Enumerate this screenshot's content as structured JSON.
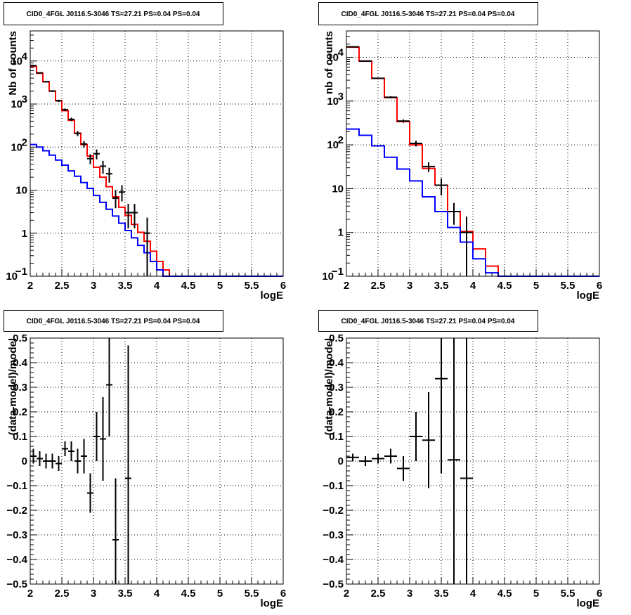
{
  "chart_data": [
    {
      "type": "line",
      "title": "CID0_4FGL J0116.5-3046 TS=27.21 PS=0.04 PS=0.04",
      "xlabel": "logE",
      "ylabel": "Nb of counts",
      "xlim": [
        2,
        6
      ],
      "ylim": [
        0.1,
        50000
      ],
      "yscale": "log",
      "grid": true,
      "x_ticks": [
        "2",
        "2.5",
        "3",
        "3.5",
        "4",
        "4.5",
        "5",
        "5.5",
        "6"
      ],
      "y_ticks": [
        {
          "value": 0.1,
          "label": "10",
          "sup": "−1"
        },
        {
          "value": 1,
          "label": "1",
          "sup": ""
        },
        {
          "value": 10,
          "label": "10",
          "sup": ""
        },
        {
          "value": 100,
          "label": "10",
          "sup": "2"
        },
        {
          "value": 1000,
          "label": "10",
          "sup": "3"
        },
        {
          "value": 10000,
          "label": "10",
          "sup": "4"
        }
      ],
      "bin_edges": [
        2,
        2.1,
        2.2,
        2.3,
        2.4,
        2.5,
        2.6,
        2.7,
        2.8,
        2.9,
        3,
        3.1,
        3.2,
        3.3,
        3.4,
        3.5,
        3.6,
        3.7,
        3.8,
        3.9,
        4,
        4.1,
        4.2,
        4.3,
        4.4,
        4.5,
        4.6,
        4.7,
        4.8,
        4.9,
        5,
        5.1,
        5.2,
        5.3,
        5.4,
        5.5,
        5.6,
        5.7,
        5.8,
        5.9,
        6
      ],
      "series": [
        {
          "name": "",
          "color": "#ff0000",
          "kind": "step",
          "values": [
            7500,
            5200,
            3300,
            2000,
            1200,
            700,
            420,
            210,
            115,
            62,
            34,
            20,
            12,
            7,
            4,
            2.6,
            1.6,
            1.05,
            0.65,
            0.38,
            0.22,
            0.14,
            0.1,
            0.1,
            0.1,
            0.1,
            0.1,
            0.1,
            0.1,
            0.1,
            0.1,
            0.1,
            0.1,
            0.1,
            0.1,
            0.1,
            0.1,
            0.1,
            0.1,
            0.1
          ]
        },
        {
          "name": "",
          "color": "#0000ff",
          "kind": "step",
          "values": [
            115,
            100,
            82,
            65,
            50,
            38,
            28,
            21,
            15,
            11,
            7.5,
            5.2,
            3.6,
            2.5,
            1.7,
            1.15,
            0.78,
            0.52,
            0.35,
            0.22,
            0.14,
            0.1,
            0.1,
            0.1,
            0.1,
            0.1,
            0.1,
            0.1,
            0.1,
            0.1,
            0.1,
            0.1,
            0.1,
            0.1,
            0.1,
            0.1,
            0.1,
            0.1,
            0.1,
            0.1
          ]
        },
        {
          "name": "",
          "color": "#000000",
          "kind": "errorbar",
          "xerr": 0.05,
          "points": [
            {
              "x": 2.05,
              "y": 7800,
              "lo": 7600,
              "hi": 8000
            },
            {
              "x": 2.15,
              "y": 5300,
              "lo": 5150,
              "hi": 5450
            },
            {
              "x": 2.25,
              "y": 3300,
              "lo": 3190,
              "hi": 3410
            },
            {
              "x": 2.35,
              "y": 2000,
              "lo": 1910,
              "hi": 2090
            },
            {
              "x": 2.45,
              "y": 1190,
              "lo": 1120,
              "hi": 1260
            },
            {
              "x": 2.55,
              "y": 740,
              "lo": 690,
              "hi": 790
            },
            {
              "x": 2.65,
              "y": 440,
              "lo": 400,
              "hi": 480
            },
            {
              "x": 2.75,
              "y": 208,
              "lo": 180,
              "hi": 236
            },
            {
              "x": 2.85,
              "y": 118,
              "lo": 97,
              "hi": 139
            },
            {
              "x": 2.95,
              "y": 54,
              "lo": 40,
              "hi": 68
            },
            {
              "x": 3.05,
              "y": 70,
              "lo": 52,
              "hi": 88
            },
            {
              "x": 3.15,
              "y": 36,
              "lo": 24,
              "hi": 48
            },
            {
              "x": 3.25,
              "y": 24,
              "lo": 15,
              "hi": 33
            },
            {
              "x": 3.35,
              "y": 6.5,
              "lo": 3.8,
              "hi": 10
            },
            {
              "x": 3.45,
              "y": 9,
              "lo": 5.5,
              "hi": 13
            },
            {
              "x": 3.55,
              "y": 3,
              "lo": 1.3,
              "hi": 4.8
            },
            {
              "x": 3.65,
              "y": 3,
              "lo": 1.3,
              "hi": 4.8
            },
            {
              "x": 3.85,
              "y": 1,
              "lo": 0.1,
              "hi": 2.3
            }
          ]
        }
      ]
    },
    {
      "type": "line",
      "title": "CID0_4FGL J0116.5-3046 TS=27.21 PS=0.04 PS=0.04",
      "xlabel": "logE",
      "ylabel": "nb of counts",
      "xlim": [
        2,
        6
      ],
      "ylim": [
        0.1,
        40000
      ],
      "yscale": "log",
      "grid": true,
      "x_ticks": [
        "2",
        "2.5",
        "3",
        "3.5",
        "4",
        "4.5",
        "5",
        "5.5",
        "6"
      ],
      "y_ticks": [
        {
          "value": 0.1,
          "label": "10",
          "sup": "−1"
        },
        {
          "value": 1,
          "label": "1",
          "sup": ""
        },
        {
          "value": 10,
          "label": "10",
          "sup": ""
        },
        {
          "value": 100,
          "label": "10",
          "sup": "2"
        },
        {
          "value": 1000,
          "label": "10",
          "sup": "3"
        },
        {
          "value": 10000,
          "label": "10",
          "sup": "4"
        }
      ],
      "bin_edges": [
        2,
        2.2,
        2.4,
        2.6,
        2.8,
        3,
        3.2,
        3.4,
        3.6,
        3.8,
        4,
        4.2,
        4.4,
        4.6,
        4.8,
        5,
        5.2,
        5.4,
        5.6,
        5.8,
        6
      ],
      "series": [
        {
          "name": "",
          "color": "#ff0000",
          "kind": "step",
          "values": [
            17000,
            8200,
            3300,
            1200,
            340,
            100,
            29,
            12,
            3,
            1.05,
            0.42,
            0.17,
            0.1,
            0.1,
            0.1,
            0.1,
            0.1,
            0.1,
            0.1,
            0.1
          ]
        },
        {
          "name": "",
          "color": "#0000ff",
          "kind": "step",
          "values": [
            230,
            165,
            95,
            52,
            28,
            15,
            6.5,
            3,
            1.3,
            0.6,
            0.25,
            0.12,
            0.1,
            0.1,
            0.1,
            0.1,
            0.1,
            0.1,
            0.1,
            0.1
          ]
        },
        {
          "name": "",
          "color": "#000000",
          "kind": "errorbar",
          "xerr": 0.1,
          "points": [
            {
              "x": 2.1,
              "y": 17300,
              "lo": 17000,
              "hi": 17600
            },
            {
              "x": 2.3,
              "y": 8200,
              "lo": 8000,
              "hi": 8400
            },
            {
              "x": 2.5,
              "y": 3320,
              "lo": 3210,
              "hi": 3430
            },
            {
              "x": 2.7,
              "y": 1220,
              "lo": 1150,
              "hi": 1290
            },
            {
              "x": 2.9,
              "y": 350,
              "lo": 320,
              "hi": 380
            },
            {
              "x": 3.1,
              "y": 108,
              "lo": 92,
              "hi": 124
            },
            {
              "x": 3.3,
              "y": 32,
              "lo": 24,
              "hi": 40
            },
            {
              "x": 3.5,
              "y": 12,
              "lo": 7,
              "hi": 17
            },
            {
              "x": 3.7,
              "y": 3,
              "lo": 1.5,
              "hi": 4.7
            },
            {
              "x": 3.9,
              "y": 1,
              "lo": 0.1,
              "hi": 2.3
            }
          ]
        }
      ]
    },
    {
      "type": "scatter",
      "title": "CID0_4FGL J0116.5-3046 TS=27.21 PS=0.04 PS=0.04",
      "xlabel": "logE",
      "ylabel": "(data-model)/model",
      "xlim": [
        2,
        6
      ],
      "ylim": [
        -0.5,
        0.5
      ],
      "yscale": "linear",
      "grid": true,
      "x_ticks": [
        "2",
        "2.5",
        "3",
        "3.5",
        "4",
        "4.5",
        "5",
        "5.5",
        "6"
      ],
      "y_ticks": [
        {
          "value": -0.5,
          "label": "−0.5"
        },
        {
          "value": -0.4,
          "label": "−0.4"
        },
        {
          "value": -0.3,
          "label": "−0.3"
        },
        {
          "value": -0.2,
          "label": "−0.2"
        },
        {
          "value": -0.1,
          "label": "−0.1"
        },
        {
          "value": 0,
          "label": "0"
        },
        {
          "value": 0.1,
          "label": "0.1"
        },
        {
          "value": 0.2,
          "label": "0.2"
        },
        {
          "value": 0.3,
          "label": "0.3"
        },
        {
          "value": 0.4,
          "label": "0.4"
        },
        {
          "value": 0.5,
          "label": "0.5"
        }
      ],
      "series": [
        {
          "name": "",
          "color": "#000000",
          "kind": "errorbar",
          "xerr": 0.05,
          "points": [
            {
              "x": 2.05,
              "y": 0.02,
              "lo": -0.01,
              "hi": 0.05
            },
            {
              "x": 2.15,
              "y": 0.01,
              "lo": -0.02,
              "hi": 0.04
            },
            {
              "x": 2.25,
              "y": 0.0,
              "lo": -0.03,
              "hi": 0.03
            },
            {
              "x": 2.35,
              "y": 0.0,
              "lo": -0.03,
              "hi": 0.03
            },
            {
              "x": 2.45,
              "y": -0.01,
              "lo": -0.04,
              "hi": 0.02
            },
            {
              "x": 2.55,
              "y": 0.05,
              "lo": 0.02,
              "hi": 0.08
            },
            {
              "x": 2.65,
              "y": 0.04,
              "lo": 0.0,
              "hi": 0.08
            },
            {
              "x": 2.75,
              "y": 0.0,
              "lo": -0.05,
              "hi": 0.05
            },
            {
              "x": 2.85,
              "y": 0.02,
              "lo": -0.05,
              "hi": 0.09
            },
            {
              "x": 2.95,
              "y": -0.13,
              "lo": -0.21,
              "hi": -0.05
            },
            {
              "x": 3.05,
              "y": 0.1,
              "lo": 0.0,
              "hi": 0.2
            },
            {
              "x": 3.15,
              "y": 0.09,
              "lo": -0.08,
              "hi": 0.26
            },
            {
              "x": 3.25,
              "y": 0.31,
              "lo": 0.1,
              "hi": 0.5
            },
            {
              "x": 3.35,
              "y": -0.32,
              "lo": -0.5,
              "hi": -0.07
            },
            {
              "x": 3.55,
              "y": -0.07,
              "lo": -0.5,
              "hi": 0.47
            }
          ]
        }
      ]
    },
    {
      "type": "scatter",
      "title": "CID0_4FGL J0116.5-3046 TS=27.21 PS=0.04 PS=0.04",
      "xlabel": "logE",
      "ylabel": "(data-model)/model",
      "xlim": [
        2,
        6
      ],
      "ylim": [
        -0.5,
        0.5
      ],
      "yscale": "linear",
      "grid": true,
      "x_ticks": [
        "2",
        "2.5",
        "3",
        "3.5",
        "4",
        "4.5",
        "5",
        "5.5",
        "6"
      ],
      "y_ticks": [
        {
          "value": -0.5,
          "label": "−0.5"
        },
        {
          "value": -0.4,
          "label": "−0.4"
        },
        {
          "value": -0.3,
          "label": "−0.3"
        },
        {
          "value": -0.2,
          "label": "−0.2"
        },
        {
          "value": -0.1,
          "label": "−0.1"
        },
        {
          "value": 0,
          "label": "0"
        },
        {
          "value": 0.1,
          "label": "0.1"
        },
        {
          "value": 0.2,
          "label": "0.2"
        },
        {
          "value": 0.3,
          "label": "0.3"
        },
        {
          "value": 0.4,
          "label": "0.4"
        },
        {
          "value": 0.5,
          "label": "0.5"
        }
      ],
      "series": [
        {
          "name": "",
          "color": "#000000",
          "kind": "errorbar",
          "xerr": 0.1,
          "points": [
            {
              "x": 2.1,
              "y": 0.015,
              "lo": 0.0,
              "hi": 0.03
            },
            {
              "x": 2.3,
              "y": 0.0,
              "lo": -0.02,
              "hi": 0.02
            },
            {
              "x": 2.5,
              "y": 0.01,
              "lo": -0.01,
              "hi": 0.03
            },
            {
              "x": 2.7,
              "y": 0.02,
              "lo": -0.01,
              "hi": 0.05
            },
            {
              "x": 2.9,
              "y": -0.03,
              "lo": -0.08,
              "hi": 0.02
            },
            {
              "x": 3.1,
              "y": 0.1,
              "lo": 0.0,
              "hi": 0.2
            },
            {
              "x": 3.3,
              "y": 0.085,
              "lo": -0.11,
              "hi": 0.28
            },
            {
              "x": 3.5,
              "y": 0.335,
              "lo": -0.05,
              "hi": 0.5
            },
            {
              "x": 3.7,
              "y": 0.005,
              "lo": -0.5,
              "hi": 0.5
            },
            {
              "x": 3.9,
              "y": -0.07,
              "lo": -0.5,
              "hi": 0.5
            }
          ]
        }
      ]
    }
  ]
}
